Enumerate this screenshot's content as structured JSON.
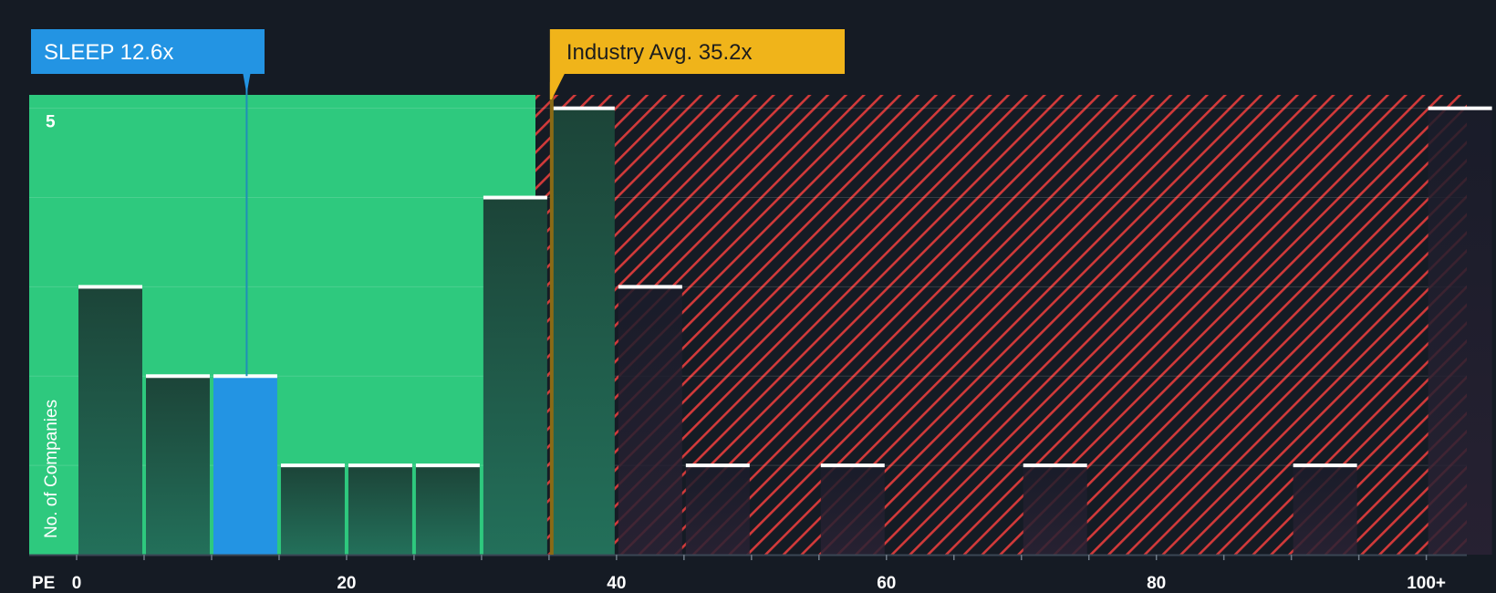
{
  "chart_data": {
    "type": "bar",
    "title": "",
    "xlabel": "PE",
    "ylabel": "No. of Companies",
    "bin_width": 5,
    "bins": [
      {
        "start": 0,
        "end": 5,
        "value": 3
      },
      {
        "start": 5,
        "end": 10,
        "value": 2
      },
      {
        "start": 10,
        "end": 15,
        "value": 2,
        "highlight": true
      },
      {
        "start": 15,
        "end": 20,
        "value": 1
      },
      {
        "start": 20,
        "end": 25,
        "value": 1
      },
      {
        "start": 25,
        "end": 30,
        "value": 1
      },
      {
        "start": 30,
        "end": 35,
        "value": 4
      },
      {
        "start": 35,
        "end": 40,
        "value": 5
      },
      {
        "start": 40,
        "end": 45,
        "value": 3
      },
      {
        "start": 45,
        "end": 50,
        "value": 1
      },
      {
        "start": 50,
        "end": 55,
        "value": 0
      },
      {
        "start": 55,
        "end": 60,
        "value": 1
      },
      {
        "start": 60,
        "end": 65,
        "value": 0
      },
      {
        "start": 65,
        "end": 70,
        "value": 0
      },
      {
        "start": 70,
        "end": 75,
        "value": 1
      },
      {
        "start": 75,
        "end": 80,
        "value": 0
      },
      {
        "start": 80,
        "end": 85,
        "value": 0
      },
      {
        "start": 85,
        "end": 90,
        "value": 0
      },
      {
        "start": 90,
        "end": 95,
        "value": 1
      },
      {
        "start": 95,
        "end": 100,
        "value": 0
      },
      {
        "start": 100,
        "end": 105,
        "value": 5
      }
    ],
    "xlim": [
      0,
      103
    ],
    "ylim": [
      0,
      5.15
    ],
    "x_ticks": [
      {
        "value": 0,
        "label": "0"
      },
      {
        "value": 20,
        "label": "20"
      },
      {
        "value": 40,
        "label": "40"
      },
      {
        "value": 60,
        "label": "60"
      },
      {
        "value": 80,
        "label": "80"
      },
      {
        "value": 100,
        "label": "100+"
      }
    ],
    "y_ticks": [
      {
        "value": 5,
        "label": "5"
      }
    ],
    "gridlines_y": [
      1,
      2,
      3,
      4,
      5
    ],
    "company": {
      "label": "SLEEP 12.6x",
      "value": 12.6
    },
    "industry_avg": {
      "label": "Industry Avg. 35.2x",
      "value": 35.2
    },
    "colors": {
      "background": "#151b24",
      "undervalued_zone": "#2ec97e",
      "overvalued_hatch": "#d23a3a",
      "bar_dark": "#1f4a3c",
      "bar_highlight": "#2394e3",
      "bar_cap": "#ffffff",
      "company_callout": "#2394e3",
      "industry_callout": "#f0b41a",
      "industry_line": "#8a6a15"
    }
  }
}
